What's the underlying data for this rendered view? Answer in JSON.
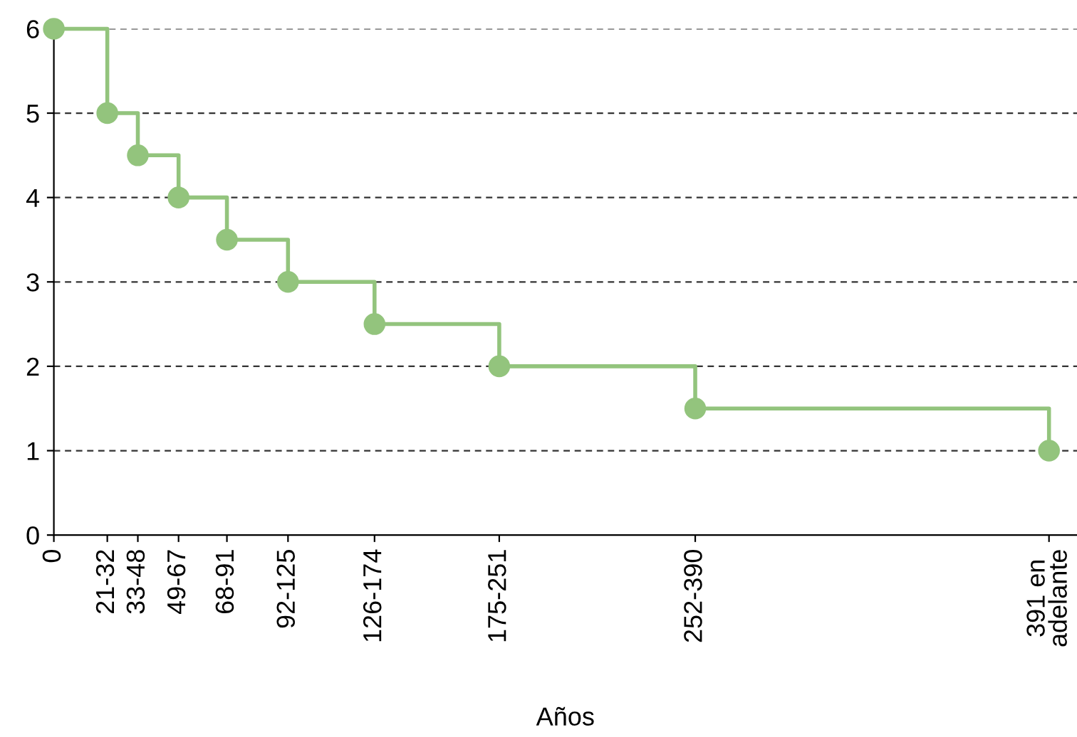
{
  "chart_data": {
    "type": "step",
    "xlabel": "Años",
    "x": [
      0,
      21,
      33,
      49,
      68,
      92,
      126,
      175,
      252,
      391
    ],
    "series": [
      {
        "color": "#93c47d",
        "values": [
          6,
          5,
          4.5,
          4,
          3.5,
          3,
          2.5,
          2,
          1.5,
          1
        ]
      }
    ],
    "xlim": [
      0,
      402
    ],
    "xticks": [
      {
        "value": 0,
        "label": "0"
      },
      {
        "value": 21,
        "label": "21-32"
      },
      {
        "value": 33,
        "label": "33-48"
      },
      {
        "value": 49,
        "label": "49-67"
      },
      {
        "value": 68,
        "label": "68-91"
      },
      {
        "value": 92,
        "label": "92-125"
      },
      {
        "value": 126,
        "label": "126-174"
      },
      {
        "value": 175,
        "label": "175-251"
      },
      {
        "value": 252,
        "label": "252-390"
      },
      {
        "value": 391,
        "label": "391 en\nadelante"
      }
    ],
    "ylim": [
      0,
      6
    ],
    "yticks": [
      0,
      1,
      2,
      3,
      4,
      5,
      6
    ],
    "grid": "y",
    "marker": "circle",
    "line_style": "solid",
    "legend": false
  }
}
